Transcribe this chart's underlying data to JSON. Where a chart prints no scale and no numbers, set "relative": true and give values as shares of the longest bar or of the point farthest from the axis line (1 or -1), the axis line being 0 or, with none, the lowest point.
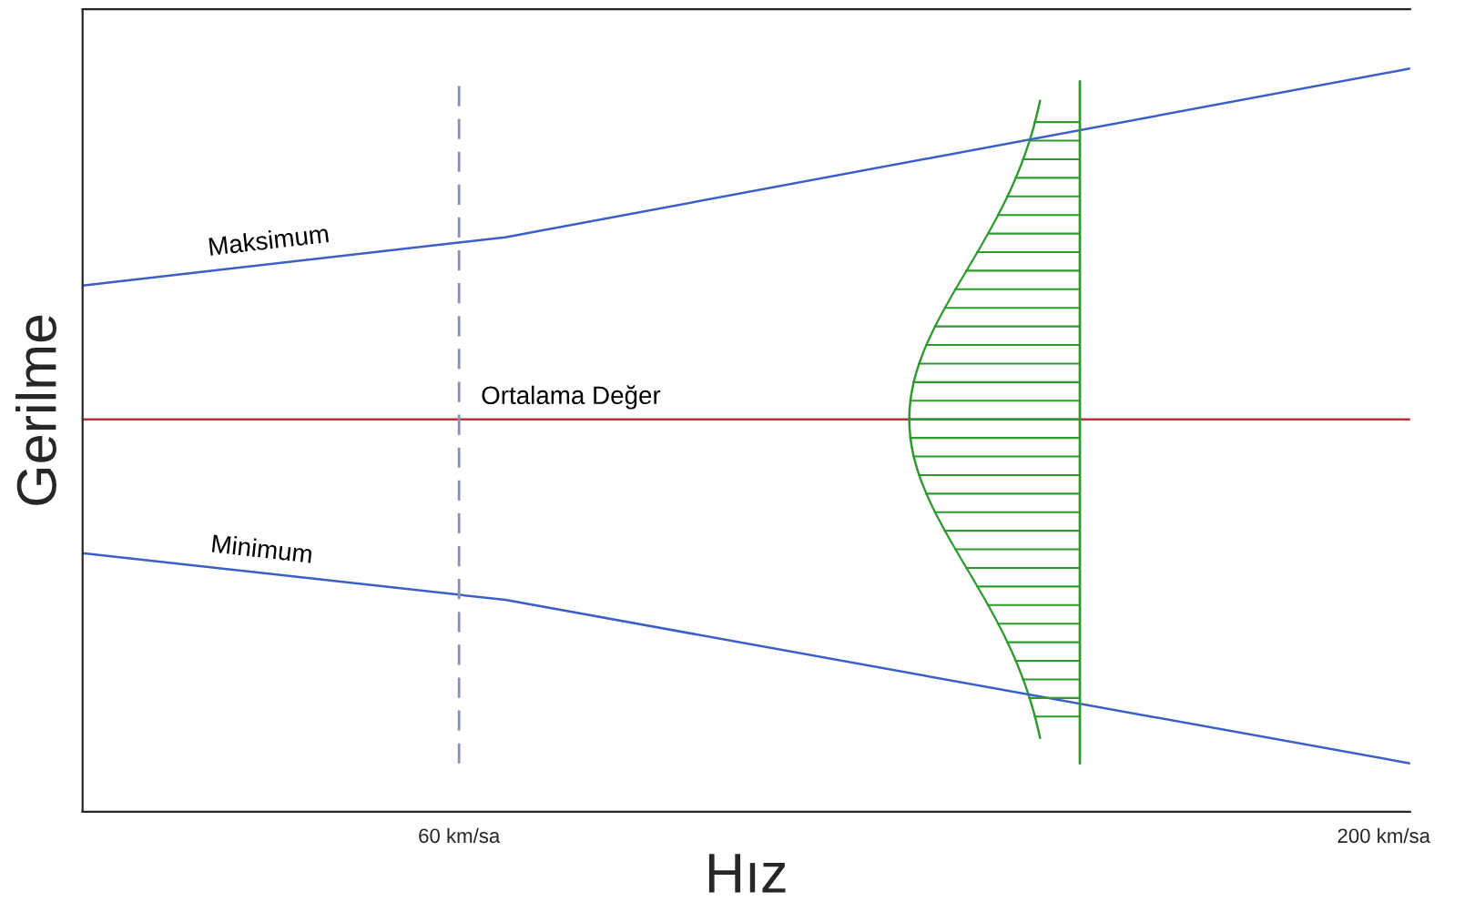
{
  "chart_data": {
    "type": "line",
    "relative": true,
    "xlabel": "Hız",
    "ylabel": "Gerilme",
    "xlim": [
      3,
      204
    ],
    "xticks": [
      {
        "value": 60,
        "label": "60 km/sa"
      },
      {
        "value": 200,
        "label": "200 km/sa"
      }
    ],
    "series": [
      {
        "name": "Maksimum",
        "color": "#3a5fc8",
        "x": [
          3,
          67,
          204
        ],
        "values": [
          0.708,
          0.773,
          1.0
        ]
      },
      {
        "name": "Ortalama Değer",
        "color": "#c0303a",
        "x": [
          3,
          204
        ],
        "values": [
          0.528,
          0.528
        ]
      },
      {
        "name": "Minimum",
        "color": "#3a5fc8",
        "x": [
          3,
          67,
          204
        ],
        "values": [
          0.348,
          0.285,
          0.065
        ]
      }
    ],
    "ref_lines": [
      {
        "axis": "x",
        "value": 60,
        "color": "#8a8fb0",
        "line_style": "dashed"
      },
      {
        "axis": "x",
        "value": 154,
        "color": "#2e9a2e",
        "line_style": "solid"
      }
    ],
    "grid": false,
    "legend": false,
    "marker": "none",
    "line_style": "solid"
  }
}
